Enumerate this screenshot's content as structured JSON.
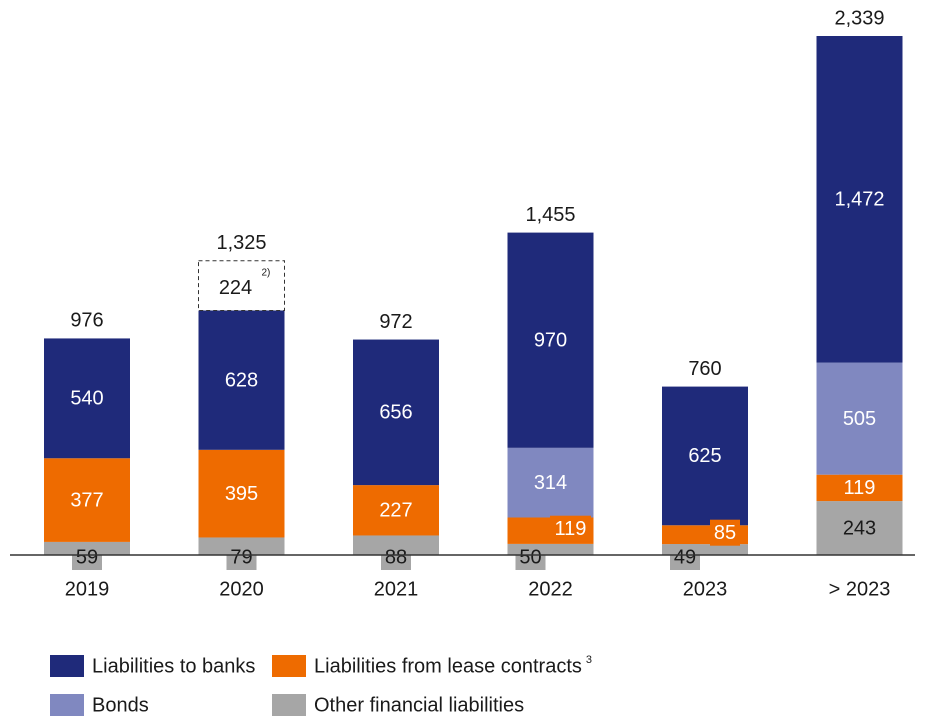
{
  "chart_data": {
    "type": "stacked_bar",
    "categories": [
      "2019",
      "2020",
      "2021",
      "2022",
      "2023",
      "> 2023"
    ],
    "series": [
      {
        "name": "Other financial liabilities",
        "color": "#a6a6a6",
        "values": [
          59,
          79,
          88,
          50,
          49,
          243
        ]
      },
      {
        "name": "Liabilities from lease contracts",
        "note": "3",
        "color": "#ee6b00",
        "values": [
          377,
          395,
          227,
          119,
          85,
          119
        ]
      },
      {
        "name": "Bonds",
        "color": "#8088c0",
        "values": [
          null,
          null,
          null,
          314,
          null,
          505
        ]
      },
      {
        "name": "Liabilities to banks",
        "color": "#1f2a7a",
        "values": [
          540,
          628,
          656,
          970,
          625,
          1472
        ]
      }
    ],
    "dashed_segment": {
      "category": "2020",
      "value": 224,
      "note": "2)"
    },
    "totals": [
      {
        "value": 976,
        "label": "976"
      },
      {
        "value": 1325,
        "label": "1,325"
      },
      {
        "value": 972,
        "label": "972"
      },
      {
        "value": 1455,
        "label": "1,455"
      },
      {
        "value": 760,
        "label": "760"
      },
      {
        "value": 2339,
        "label": "2,339"
      }
    ],
    "value_labels": [
      [
        "59",
        "79",
        "88",
        "50",
        "49",
        "243"
      ],
      [
        "377",
        "395",
        "227",
        "119",
        "85",
        "119"
      ],
      [
        null,
        null,
        null,
        "314",
        null,
        "505"
      ],
      [
        "540",
        "628",
        "656",
        "970",
        "625",
        "1,472"
      ]
    ],
    "legend_order": [
      3,
      1,
      2,
      0
    ]
  }
}
